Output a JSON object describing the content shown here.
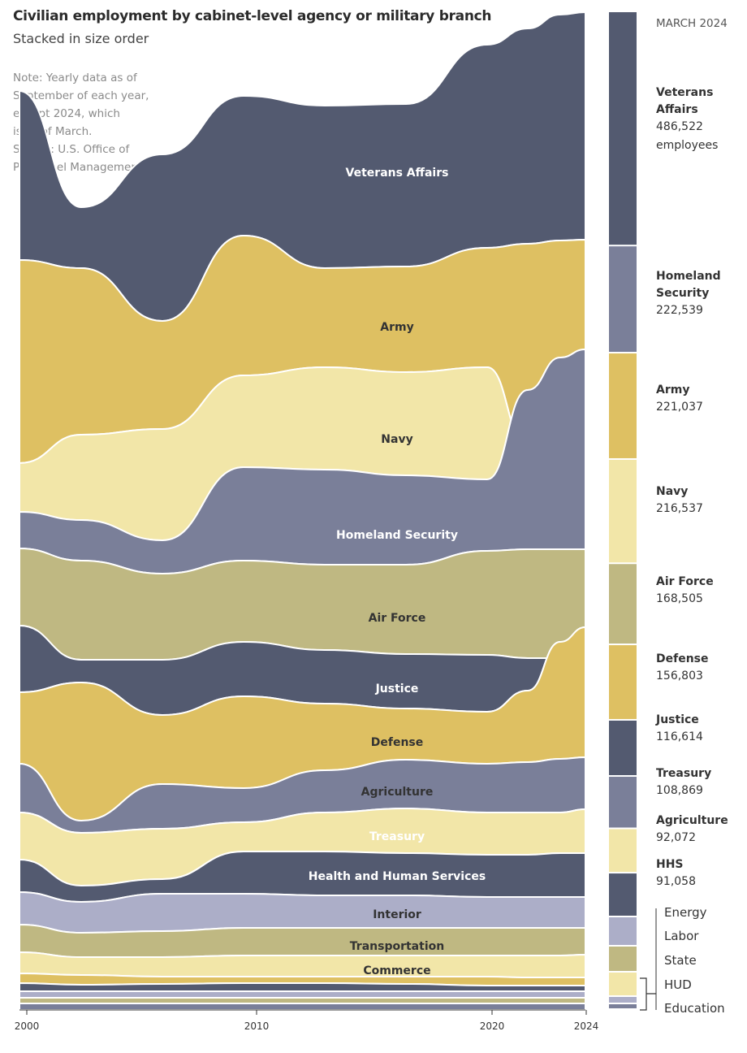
{
  "header": {
    "title": "Civilian employment by cabinet-level agency or military branch",
    "subtitle": "Stacked in size order",
    "note_lines": [
      "Note: Yearly data as of",
      "September of each year,",
      "except 2024, which",
      "is as of March.",
      "Source: U.S. Office of",
      "Personnel Management"
    ]
  },
  "colors": {
    "dark_slate": "#535a70",
    "slate": "#7a7f99",
    "lavender": "#acaec8",
    "gold": "#dec062",
    "pale_yellow": "#f2e6a8",
    "olive": "#bfb882",
    "text_light": "#ffffff",
    "text_dark": "#333333"
  },
  "chart_data": {
    "type": "area",
    "x_ticks": [
      "2000",
      "2010",
      "2020",
      "2024"
    ],
    "stream_labels": [
      "Veterans Affairs",
      "Army",
      "Navy",
      "Homeland Security",
      "Air Force",
      "Justice",
      "Defense",
      "Agriculture",
      "Treasury",
      "Health and Human Services",
      "Interior",
      "Transportation",
      "Commerce"
    ],
    "date_label": "MARCH 2024",
    "march_2024": [
      {
        "name": "Veterans Affairs",
        "name_lines": [
          "Veterans",
          "Affairs"
        ],
        "value": 486522,
        "display": "486,522",
        "unit": "employees",
        "color": "dark_slate"
      },
      {
        "name": "Homeland Security",
        "name_lines": [
          "Homeland",
          "Security"
        ],
        "value": 222539,
        "display": "222,539",
        "color": "slate"
      },
      {
        "name": "Army",
        "name_lines": [
          "Army"
        ],
        "value": 221037,
        "display": "221,037",
        "color": "gold"
      },
      {
        "name": "Navy",
        "name_lines": [
          "Navy"
        ],
        "value": 216537,
        "display": "216,537",
        "color": "pale_yellow"
      },
      {
        "name": "Air Force",
        "name_lines": [
          "Air Force"
        ],
        "value": 168505,
        "display": "168,505",
        "color": "olive"
      },
      {
        "name": "Defense",
        "name_lines": [
          "Defense"
        ],
        "value": 156803,
        "display": "156,803",
        "color": "gold"
      },
      {
        "name": "Justice",
        "name_lines": [
          "Justice"
        ],
        "value": 116614,
        "display": "116,614",
        "color": "dark_slate"
      },
      {
        "name": "Treasury",
        "name_lines": [
          "Treasury"
        ],
        "value": 108869,
        "display": "108,869",
        "color": "slate"
      },
      {
        "name": "Agriculture",
        "name_lines": [
          "Agriculture"
        ],
        "value": 92072,
        "display": "92,072",
        "color": "pale_yellow"
      },
      {
        "name": "HHS",
        "name_lines": [
          "HHS"
        ],
        "value": 91058,
        "display": "91,058",
        "color": "dark_slate"
      }
    ],
    "small_agencies": [
      {
        "name": "Energy",
        "color": "lavender"
      },
      {
        "name": "Labor",
        "color": "olive"
      },
      {
        "name": "State",
        "color": "pale_yellow"
      },
      {
        "name": "HUD",
        "color": "lavender"
      },
      {
        "name": "Education",
        "color": "slate"
      }
    ]
  }
}
